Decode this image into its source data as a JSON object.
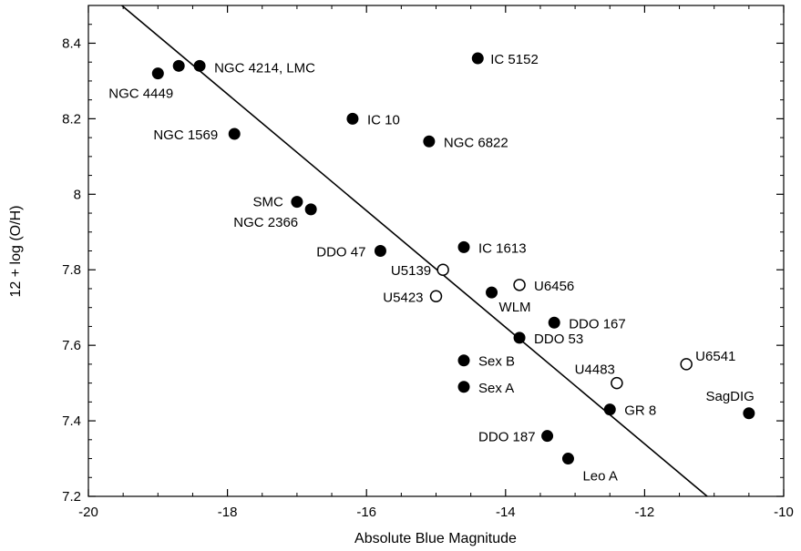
{
  "chart_data": {
    "type": "scatter",
    "title": "",
    "xlabel": "Absolute Blue Magnitude",
    "ylabel": "12 + log (O/H)",
    "xlim": [
      -20,
      -10
    ],
    "ylim": [
      7.2,
      8.5
    ],
    "x_ticks": [
      -20,
      -18,
      -16,
      -14,
      -12,
      -10
    ],
    "x_tick_labels": [
      "-20",
      "-18",
      "-16",
      "-14",
      "-12",
      "-10"
    ],
    "y_ticks": [
      7.2,
      7.4,
      7.6,
      7.8,
      8.0,
      8.2,
      8.4
    ],
    "y_tick_labels": [
      "7.2",
      "7.4",
      "7.6",
      "7.8",
      "8",
      "8.2",
      "8.4"
    ],
    "grid": false,
    "legend": "none",
    "fit_line": {
      "x": [
        -19.52,
        -11.1
      ],
      "y": [
        8.5,
        7.2
      ]
    },
    "points": [
      {
        "label": "NGC 4449",
        "x": -19.0,
        "y": 8.32,
        "filled": true
      },
      {
        "label": "",
        "x": -18.7,
        "y": 8.34,
        "filled": true
      },
      {
        "label": "NGC 4214, LMC",
        "x": -18.4,
        "y": 8.34,
        "filled": true
      },
      {
        "label": "IC 5152",
        "x": -14.4,
        "y": 8.36,
        "filled": true
      },
      {
        "label": "NGC 1569",
        "x": -17.9,
        "y": 8.16,
        "filled": true
      },
      {
        "label": "IC 10",
        "x": -16.2,
        "y": 8.2,
        "filled": true
      },
      {
        "label": "NGC 6822",
        "x": -15.1,
        "y": 8.14,
        "filled": true
      },
      {
        "label": "SMC",
        "x": -17.0,
        "y": 7.98,
        "filled": true
      },
      {
        "label": "NGC 2366",
        "x": -16.8,
        "y": 7.96,
        "filled": true
      },
      {
        "label": "DDO 47",
        "x": -15.8,
        "y": 7.85,
        "filled": true
      },
      {
        "label": "IC 1613",
        "x": -14.6,
        "y": 7.86,
        "filled": true
      },
      {
        "label": "U5139",
        "x": -14.9,
        "y": 7.8,
        "filled": false
      },
      {
        "label": "U6456",
        "x": -13.8,
        "y": 7.76,
        "filled": false
      },
      {
        "label": "U5423",
        "x": -15.0,
        "y": 7.73,
        "filled": false
      },
      {
        "label": "WLM",
        "x": -14.2,
        "y": 7.74,
        "filled": true
      },
      {
        "label": "DDO 167",
        "x": -13.3,
        "y": 7.66,
        "filled": true
      },
      {
        "label": "DDO 53",
        "x": -13.8,
        "y": 7.62,
        "filled": true
      },
      {
        "label": "Sex B",
        "x": -14.6,
        "y": 7.56,
        "filled": true
      },
      {
        "label": "U6541",
        "x": -11.4,
        "y": 7.55,
        "filled": false
      },
      {
        "label": "U4483",
        "x": -12.4,
        "y": 7.5,
        "filled": false
      },
      {
        "label": "Sex A",
        "x": -14.6,
        "y": 7.49,
        "filled": true
      },
      {
        "label": "GR 8",
        "x": -12.5,
        "y": 7.43,
        "filled": true
      },
      {
        "label": "SagDIG",
        "x": -10.5,
        "y": 7.42,
        "filled": true
      },
      {
        "label": "DDO 187",
        "x": -13.4,
        "y": 7.36,
        "filled": true
      },
      {
        "label": "Leo A",
        "x": -13.1,
        "y": 7.3,
        "filled": true
      }
    ]
  }
}
